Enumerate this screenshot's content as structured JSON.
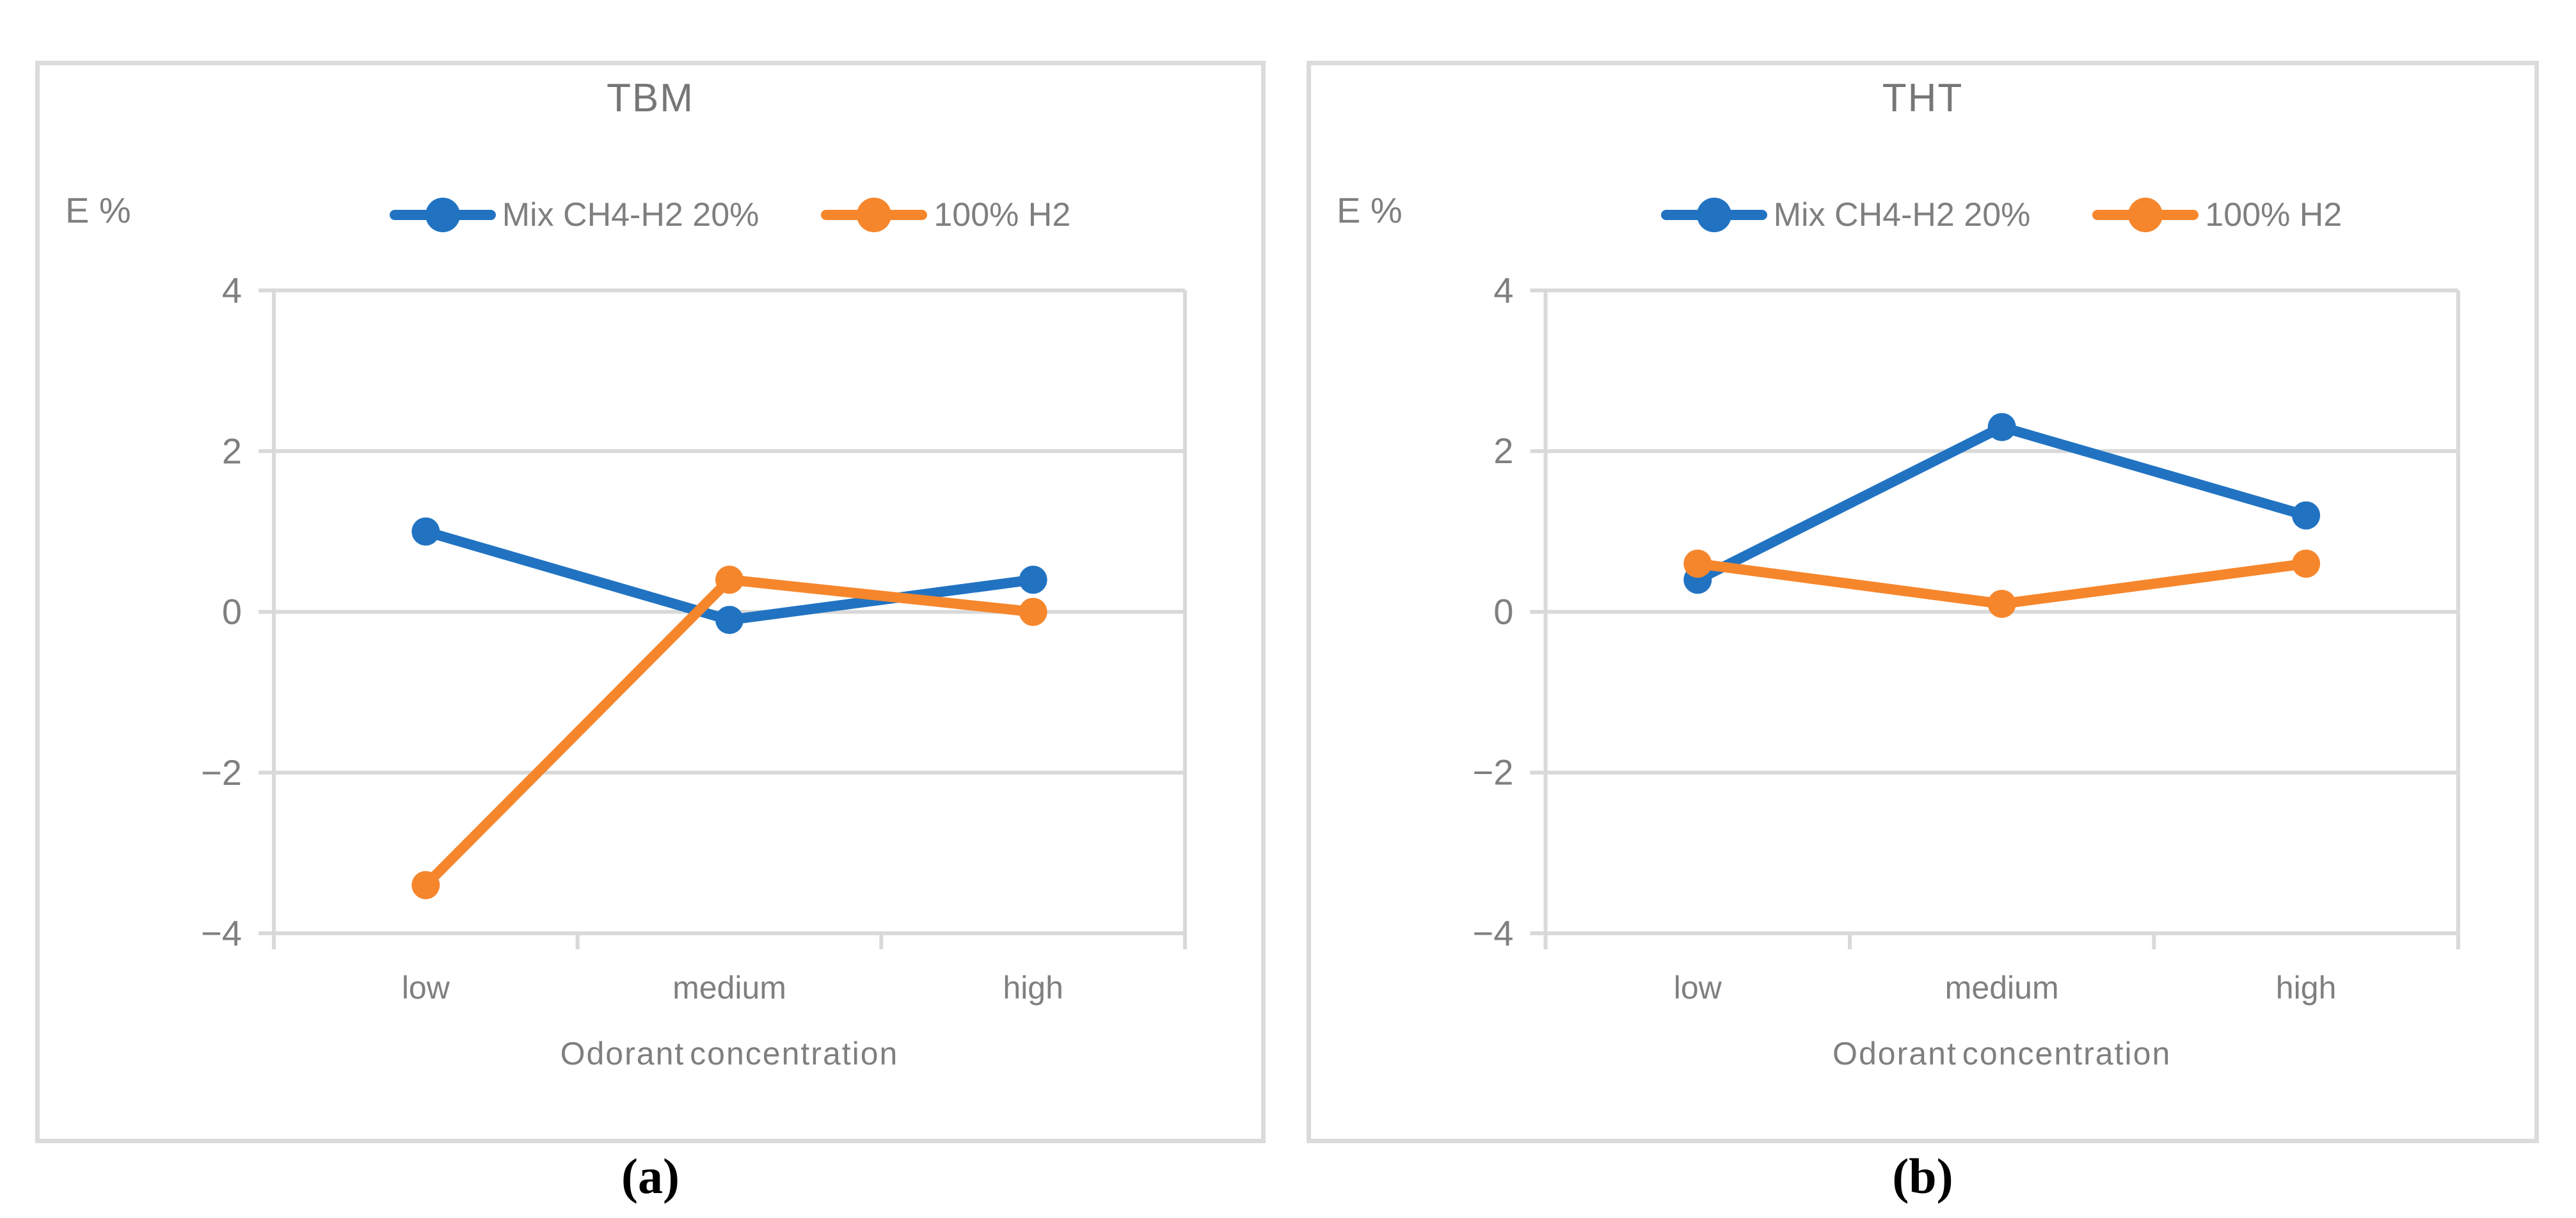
{
  "figure": {
    "captions": [
      "(a)",
      "(b)"
    ]
  },
  "colors": {
    "series_blue": "#2173C2",
    "series_orange": "#F6862C",
    "grid": "#D9D9D9",
    "axis_text": "#7F7F7F",
    "title_text": "#767676",
    "panel_border": "#DBDBDB",
    "caption_text": "#000000"
  },
  "chart_data": [
    {
      "type": "line",
      "title": "TBM",
      "ylabel": "E %",
      "xlabel": "Odorant concentration",
      "categories": [
        "low",
        "medium",
        "high"
      ],
      "ylim": [
        -4,
        4
      ],
      "ytick_step": 2,
      "grid": true,
      "legend_position": "top",
      "marker": "circle",
      "series": [
        {
          "name": "Mix CH4-H2 20%",
          "color": "#2173C2",
          "values": [
            1.0,
            -0.1,
            0.4
          ]
        },
        {
          "name": "100% H2",
          "color": "#F6862C",
          "values": [
            -3.4,
            0.4,
            0.0
          ]
        }
      ]
    },
    {
      "type": "line",
      "title": "THT",
      "ylabel": "E %",
      "xlabel": "Odorant concentration",
      "categories": [
        "low",
        "medium",
        "high"
      ],
      "ylim": [
        -4,
        4
      ],
      "ytick_step": 2,
      "grid": true,
      "legend_position": "top",
      "marker": "circle",
      "series": [
        {
          "name": "Mix CH4-H2 20%",
          "color": "#2173C2",
          "values": [
            0.4,
            2.3,
            1.2
          ]
        },
        {
          "name": "100% H2",
          "color": "#F6862C",
          "values": [
            0.6,
            0.1,
            0.6
          ]
        }
      ]
    }
  ]
}
